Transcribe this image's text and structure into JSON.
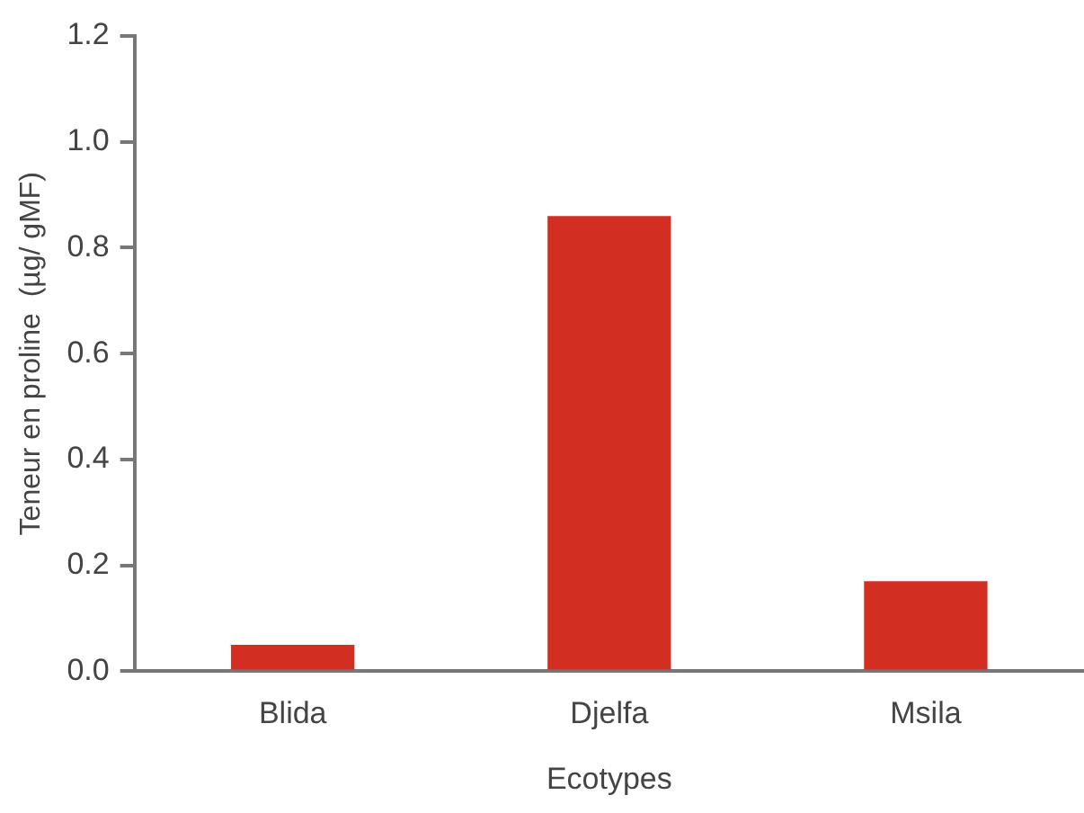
{
  "chart_data": {
    "type": "bar",
    "xlabel": "Ecotypes",
    "ylabel": "Teneur en proline  (µg/ gMF)",
    "categories": [
      "Blida",
      "Djelfa",
      "Msila"
    ],
    "values": [
      0.05,
      0.86,
      0.17
    ],
    "color": "#d22f22",
    "ylim": [
      0,
      1.2
    ],
    "yticks": [
      {
        "value": 0,
        "label": "0.0"
      },
      {
        "value": 0.2,
        "label": "0.2"
      },
      {
        "value": 0.4,
        "label": "0.4"
      },
      {
        "value": 0.6,
        "label": "0.6"
      },
      {
        "value": 0.8,
        "label": "0.8"
      },
      {
        "value": 1,
        "label": "1.0"
      },
      {
        "value": 1.2,
        "label": "1.2"
      }
    ],
    "grid": false,
    "legend": false
  }
}
